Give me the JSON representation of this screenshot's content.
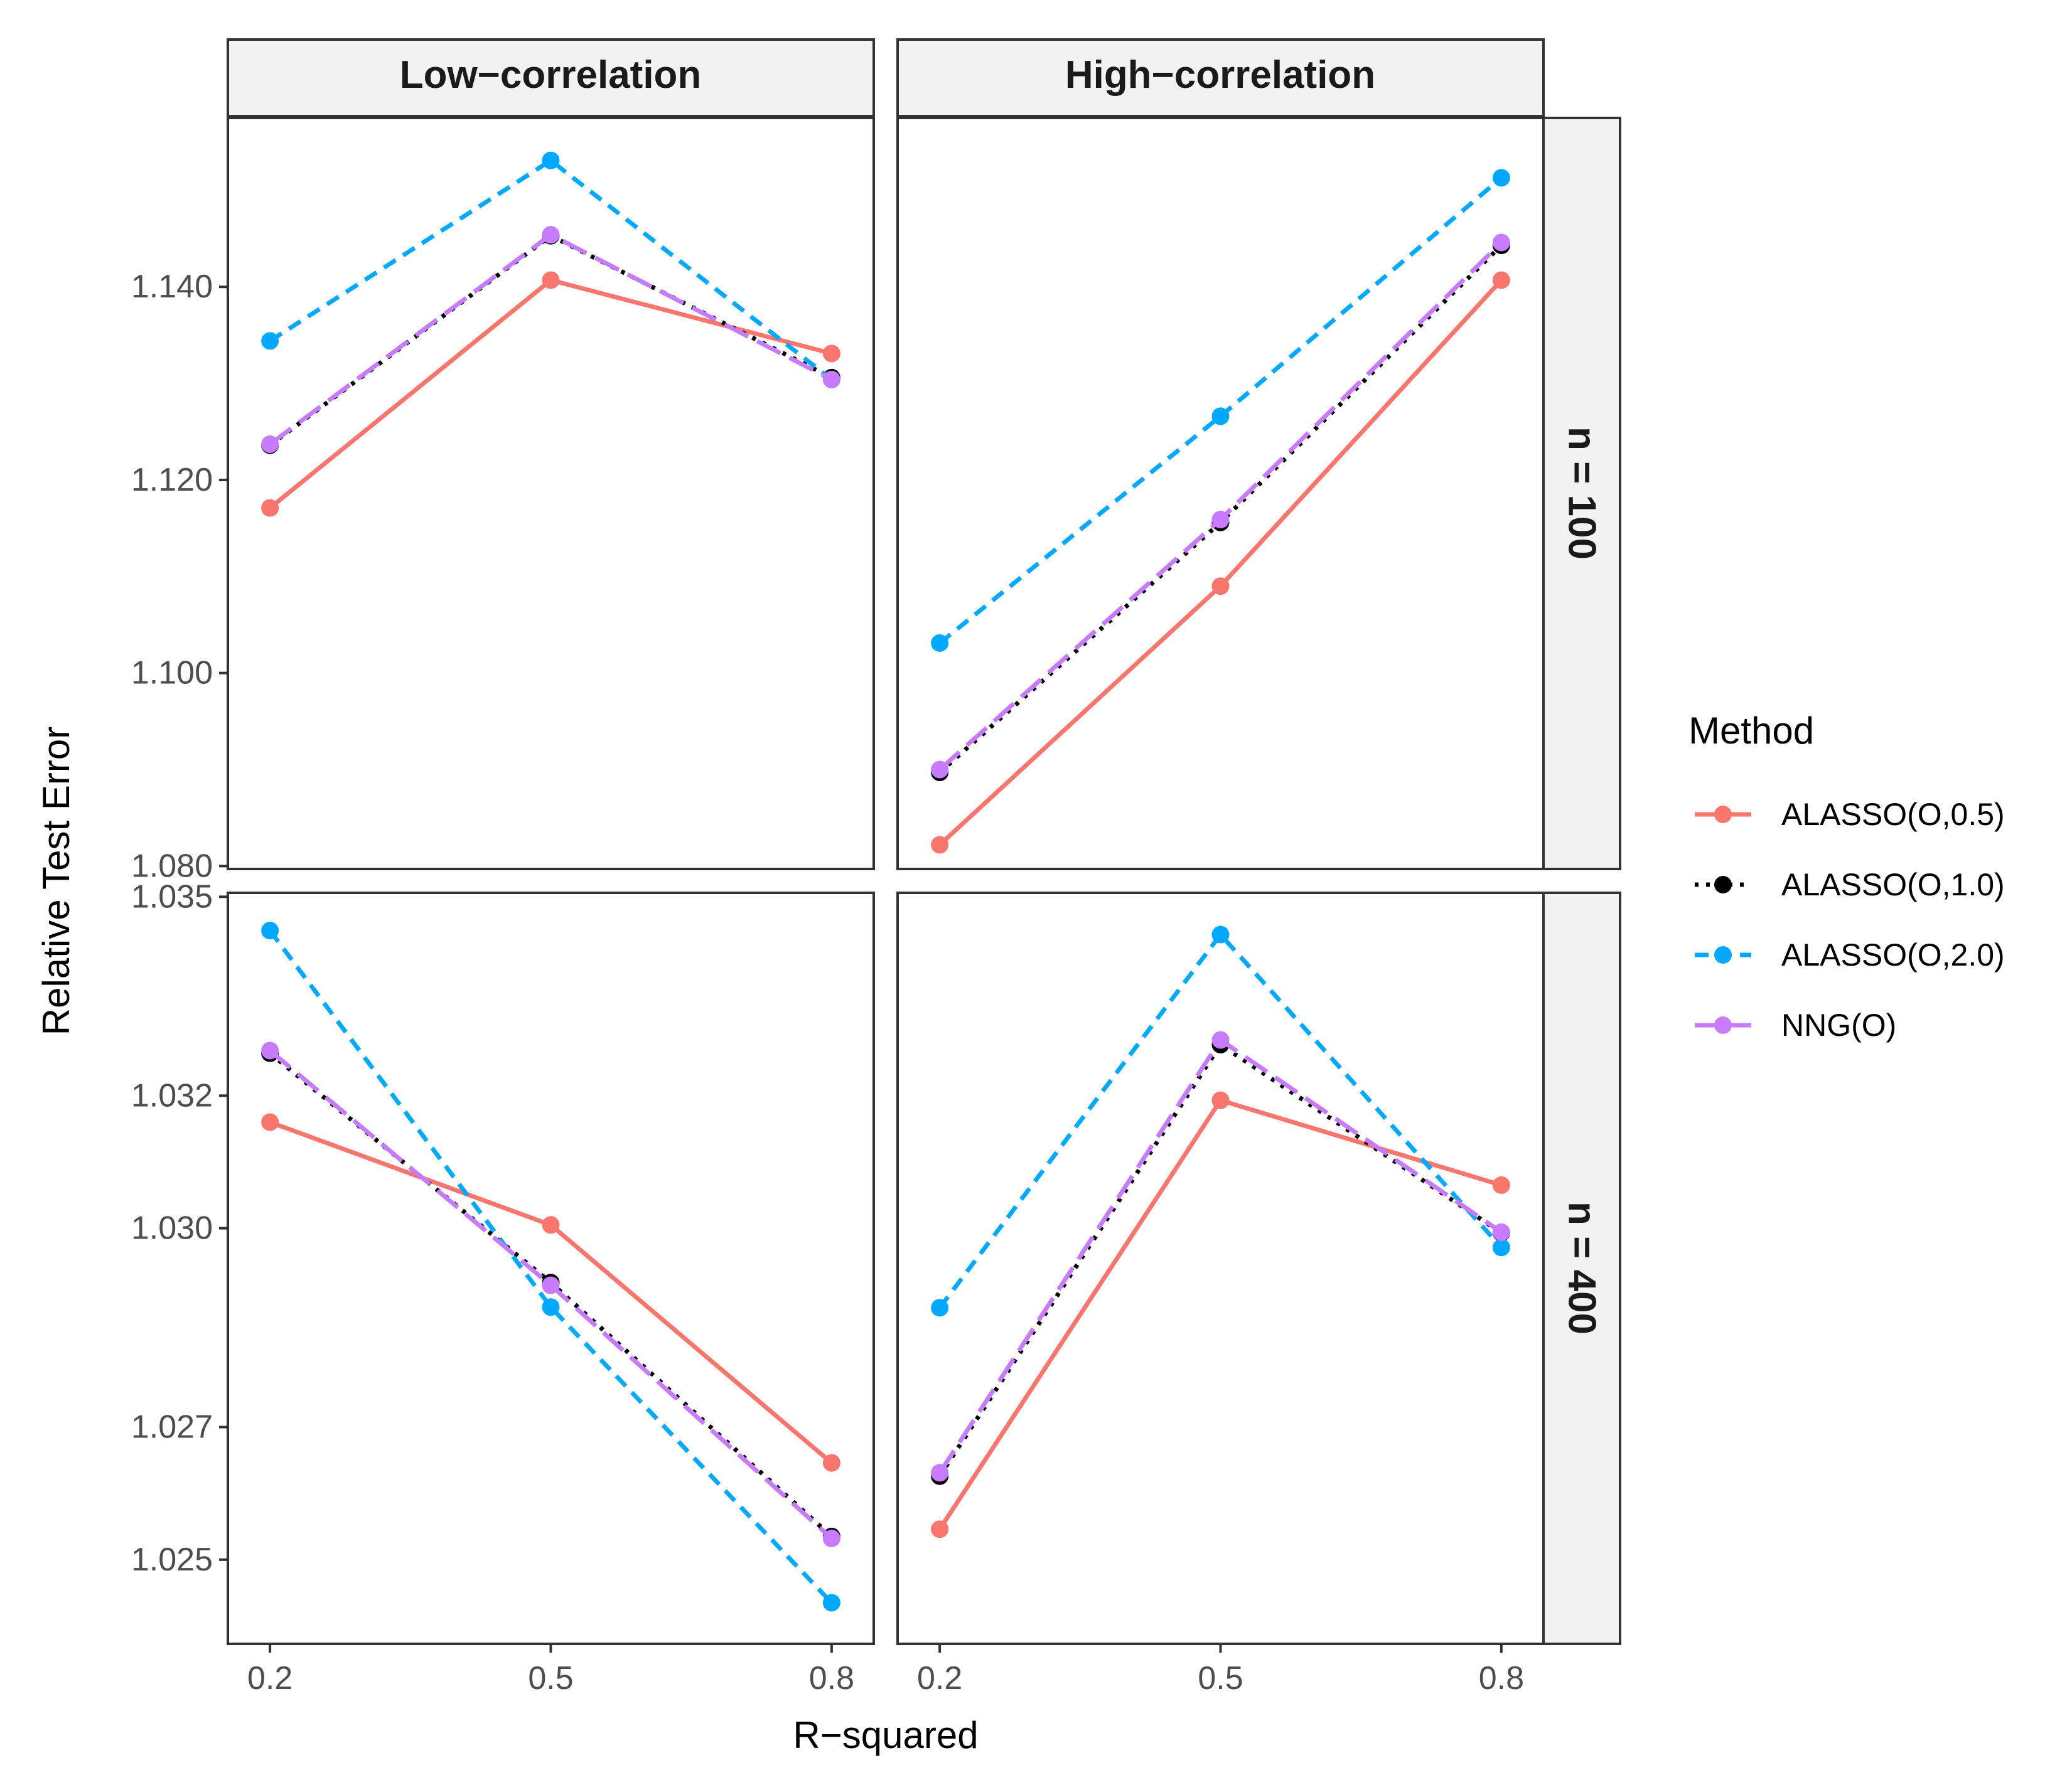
{
  "chart_data": {
    "type": "line",
    "x": [
      0.2,
      0.5,
      0.8
    ],
    "x_tick_labels": [
      "0.2",
      "0.5",
      "0.8"
    ],
    "xlabel": "R−squared",
    "ylabel": "Relative Test Error",
    "columns": [
      "Low−correlation",
      "High−correlation"
    ],
    "rows": [
      "n = 100",
      "n = 400"
    ],
    "legend": {
      "title": "Method",
      "placement": "right",
      "entries": [
        {
          "name": "ALASSO(O,0.5)",
          "color": "#F8766D",
          "dash": "solid"
        },
        {
          "name": "ALASSO(O,1.0)",
          "color": "#000000",
          "dash": "dotted"
        },
        {
          "name": "ALASSO(O,2.0)",
          "color": "#00A9FF",
          "dash": "dashed"
        },
        {
          "name": "NNG(O)",
          "color": "#C77CFF",
          "dash": "longdash"
        }
      ]
    },
    "panels": [
      {
        "column": "Low−correlation",
        "row": "n = 100",
        "ylim": [
          1.0797,
          1.1575
        ],
        "yticks": [
          1.08,
          1.1,
          1.12,
          1.14
        ],
        "ytick_labels": [
          "1.080",
          "1.100",
          "1.120",
          "1.140"
        ],
        "show_y_axis": true,
        "series": [
          {
            "name": "ALASSO(O,0.5)",
            "values": [
              1.1171,
              1.1407,
              1.1331
            ]
          },
          {
            "name": "ALASSO(O,1.0)",
            "values": [
              1.1236,
              1.1453,
              1.1306
            ]
          },
          {
            "name": "ALASSO(O,2.0)",
            "values": [
              1.1344,
              1.1531,
              1.1304
            ]
          },
          {
            "name": "NNG(O)",
            "values": [
              1.1237,
              1.1454,
              1.1304
            ]
          }
        ]
      },
      {
        "column": "High−correlation",
        "row": "n = 100",
        "ylim": [
          1.0797,
          1.1575
        ],
        "show_y_axis": false,
        "series": [
          {
            "name": "ALASSO(O,0.5)",
            "values": [
              1.0822,
              1.109,
              1.1407
            ]
          },
          {
            "name": "ALASSO(O,1.0)",
            "values": [
              1.0897,
              1.1156,
              1.1443
            ]
          },
          {
            "name": "ALASSO(O,2.0)",
            "values": [
              1.1031,
              1.1266,
              1.1513
            ]
          },
          {
            "name": "NNG(O)",
            "values": [
              1.09,
              1.1159,
              1.1446
            ]
          }
        ]
      },
      {
        "column": "Low−correlation",
        "row": "n = 400",
        "ylim": [
          1.02373,
          1.03506
        ],
        "yticks": [
          1.025,
          1.027,
          1.03,
          1.032,
          1.035
        ],
        "ytick_labels": [
          "1.025",
          "1.027",
          "1.030",
          "1.032",
          "1.035"
        ],
        "show_y_axis": true,
        "series": [
          {
            "name": "ALASSO(O,0.5)",
            "values": [
              1.0316,
              1.03005,
              1.02646
            ]
          },
          {
            "name": "ALASSO(O,1.0)",
            "values": [
              1.03264,
              1.02918,
              1.02535
            ]
          },
          {
            "name": "ALASSO(O,2.0)",
            "values": [
              1.03449,
              1.02881,
              1.02435
            ]
          },
          {
            "name": "NNG(O)",
            "values": [
              1.03268,
              1.02914,
              1.02532
            ]
          }
        ]
      },
      {
        "column": "High−correlation",
        "row": "n = 400",
        "ylim": [
          1.02373,
          1.03506
        ],
        "show_y_axis": false,
        "series": [
          {
            "name": "ALASSO(O,0.5)",
            "values": [
              1.02546,
              1.03193,
              1.03065
            ]
          },
          {
            "name": "ALASSO(O,1.0)",
            "values": [
              1.02626,
              1.03277,
              1.02993
            ]
          },
          {
            "name": "ALASSO(O,2.0)",
            "values": [
              1.0288,
              1.03443,
              1.02971
            ]
          },
          {
            "name": "NNG(O)",
            "values": [
              1.02631,
              1.03284,
              1.02994
            ]
          }
        ]
      }
    ]
  }
}
